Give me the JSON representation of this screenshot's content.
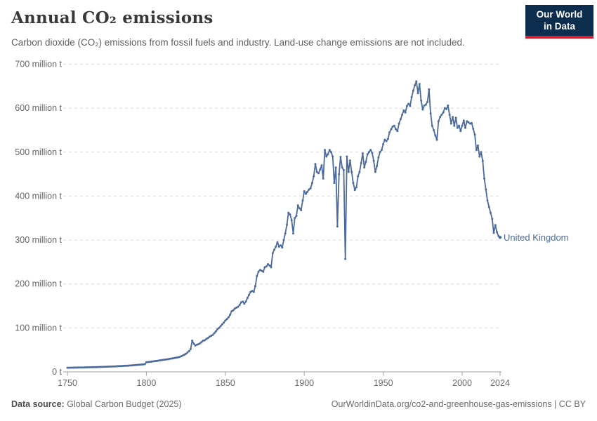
{
  "header": {
    "title": "Annual CO₂ emissions",
    "subtitle": "Carbon dioxide (CO₂) emissions from fossil fuels and industry. Land-use change emissions are not included.",
    "logo": {
      "line1": "Our World",
      "line2": "in Data",
      "bg_color": "#0c2d4e",
      "accent_color": "#cf2433",
      "text_color": "#ffffff"
    }
  },
  "chart_data": {
    "type": "line",
    "title": "Annual CO₂ emissions",
    "unit": "million tonnes of CO₂",
    "xlim": [
      1750,
      2024
    ],
    "ylim": [
      0,
      700
    ],
    "grid": "horizontal-dashed",
    "legend_position": "end-of-line",
    "xticks": [
      1750,
      1800,
      1850,
      1900,
      1950,
      2000,
      2024
    ],
    "yticks": [
      {
        "value": 0,
        "label": "0 t"
      },
      {
        "value": 100,
        "label": "100 million t"
      },
      {
        "value": 200,
        "label": "200 million t"
      },
      {
        "value": 300,
        "label": "300 million t"
      },
      {
        "value": 400,
        "label": "400 million t"
      },
      {
        "value": 500,
        "label": "500 million t"
      },
      {
        "value": 600,
        "label": "600 million t"
      },
      {
        "value": 700,
        "label": "700 million t"
      }
    ],
    "series": [
      {
        "name": "United Kingdom",
        "color": "#4c6a9c",
        "x_start": 1750,
        "x_end": 2024,
        "x_step": 1,
        "values": [
          9.4,
          9.4,
          9.5,
          9.5,
          9.6,
          9.7,
          9.8,
          9.9,
          10,
          10,
          10.1,
          10.2,
          10.3,
          10.4,
          10.5,
          10.6,
          10.7,
          10.8,
          10.9,
          11,
          11.1,
          11.2,
          11.4,
          11.5,
          11.6,
          11.8,
          11.9,
          12.1,
          12.2,
          12.4,
          12.5,
          12.7,
          12.9,
          13.1,
          13.3,
          13.5,
          13.7,
          13.9,
          14.1,
          14.4,
          14.6,
          14.9,
          15.2,
          15.5,
          15.8,
          16.1,
          16.4,
          16.8,
          17.1,
          17.5,
          22,
          22.4,
          22.9,
          23.3,
          23.8,
          24.3,
          24.8,
          25.3,
          25.8,
          26.3,
          26.9,
          27.4,
          28,
          28.6,
          29.2,
          29.8,
          30.4,
          31,
          31.7,
          32.3,
          33,
          34,
          35.5,
          37,
          39,
          41,
          44,
          47,
          52,
          71,
          64,
          60,
          62,
          63,
          65,
          68,
          71,
          72,
          75,
          77,
          80,
          82,
          84,
          88,
          92,
          97,
          100,
          104,
          108,
          112,
          117,
          120,
          124,
          130,
          138,
          140,
          144,
          146,
          148,
          152,
          158,
          160,
          155,
          160,
          168,
          175,
          182,
          184,
          182,
          195,
          218,
          228,
          232,
          230,
          228,
          238,
          240,
          245,
          242,
          238,
          270,
          278,
          285,
          295,
          285,
          288,
          283,
          300,
          315,
          335,
          362,
          358,
          345,
          315,
          350,
          355,
          379,
          372,
          368,
          390,
          411,
          405,
          410,
          415,
          418,
          430,
          445,
          473,
          455,
          452,
          460,
          470,
          440,
          505,
          490,
          495,
          505,
          500,
          490,
          430,
          465,
          331,
          450,
          489,
          465,
          459,
          257,
          490,
          455,
          481,
          455,
          430,
          414,
          420,
          445,
          455,
          475,
          497,
          465,
          478,
          495,
          500,
          505,
          498,
          480,
          455,
          468,
          488,
          500,
          505,
          518,
          528,
          525,
          530,
          545,
          552,
          558,
          560,
          552,
          548,
          565,
          575,
          585,
          595,
          590,
          605,
          610,
          605,
          625,
          640,
          652,
          661,
          634,
          655,
          617,
          597,
          606,
          608,
          614,
          643,
          588,
          560,
          550,
          538,
          528,
          570,
          580,
          585,
          590,
          600,
          598,
          606,
          585,
          565,
          580,
          560,
          578,
          555,
          560,
          548,
          560,
          572,
          555,
          570,
          568,
          565,
          566,
          553,
          540,
          505,
          515,
          490,
          500,
          480,
          440,
          415,
          390,
          375,
          362,
          348,
          316,
          334,
          318,
          309,
          306
        ]
      }
    ]
  },
  "footer": {
    "source_label": "Data source:",
    "source_value": "Global Carbon Budget (2025)",
    "credit": "OurWorldinData.org/co2-and-greenhouse-gas-emissions | CC BY"
  }
}
